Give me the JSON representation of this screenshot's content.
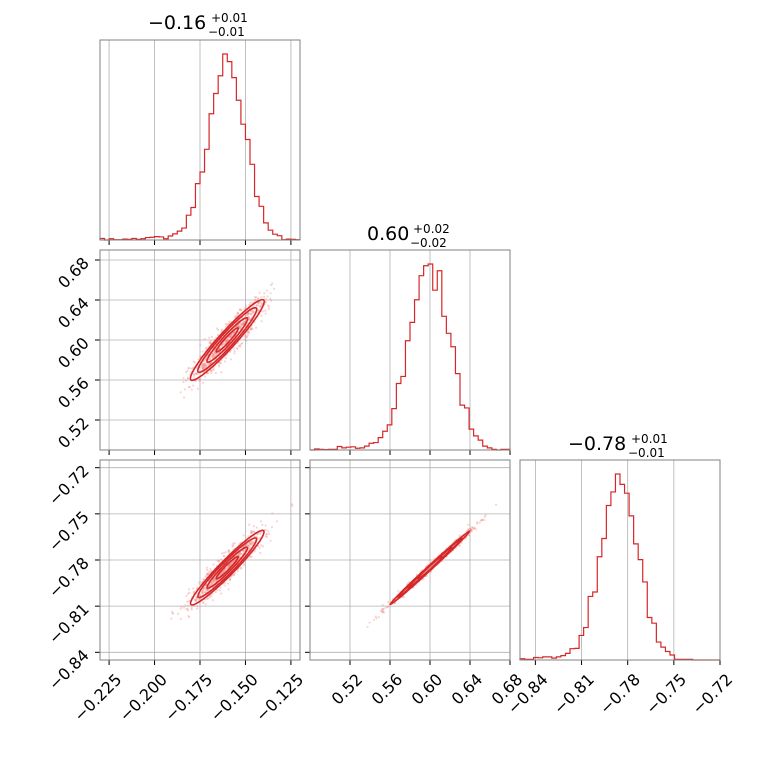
{
  "chart_data": [
    {
      "type": "histogram",
      "panel": "diagonal-1",
      "title_value": "−0.16",
      "title_plus": "+0.01",
      "title_minus": "−0.01",
      "xlim": [
        -0.23,
        -0.12
      ],
      "x_ticks": [
        -0.225,
        -0.2,
        -0.175,
        -0.15,
        -0.125
      ],
      "x_tick_labels": [
        "−0.225",
        "−0.200",
        "−0.175",
        "−0.150",
        "−0.125"
      ],
      "color": "#d62728",
      "median": -0.16,
      "sigma": 0.01
    },
    {
      "type": "histogram",
      "panel": "diagonal-2",
      "title_value": "0.60",
      "title_plus": "+0.02",
      "title_minus": "−0.02",
      "xlim": [
        0.48,
        0.68
      ],
      "x_ticks": [
        0.52,
        0.56,
        0.6,
        0.64,
        0.68
      ],
      "x_tick_labels": [
        "0.52",
        "0.56",
        "0.60",
        "0.64",
        "0.68"
      ],
      "color": "#d62728",
      "median": 0.6,
      "sigma": 0.02
    },
    {
      "type": "histogram",
      "panel": "diagonal-3",
      "title_value": "−0.78",
      "title_plus": "+0.01",
      "title_minus": "−0.01",
      "xlim": [
        -0.85,
        -0.72
      ],
      "x_ticks": [
        -0.84,
        -0.81,
        -0.78,
        -0.75,
        -0.72
      ],
      "x_tick_labels": [
        "−0.84",
        "−0.81",
        "−0.78",
        "−0.75",
        "−0.72"
      ],
      "color": "#d62728",
      "median": -0.785,
      "sigma": 0.012
    },
    {
      "type": "scatter",
      "panel": "2d-param1-param2",
      "xlim": [
        -0.23,
        -0.12
      ],
      "ylim": [
        0.49,
        0.69
      ],
      "x_ticks": [
        -0.225,
        -0.2,
        -0.175,
        -0.15,
        -0.125
      ],
      "y_ticks": [
        0.52,
        0.56,
        0.6,
        0.64,
        0.68
      ],
      "y_tick_labels": [
        "0.52",
        "0.56",
        "0.60",
        "0.64",
        "0.68"
      ],
      "color": "#d62728",
      "correlation": 0.92
    },
    {
      "type": "scatter",
      "panel": "2d-param1-param3",
      "xlim": [
        -0.23,
        -0.12
      ],
      "ylim": [
        -0.845,
        -0.715
      ],
      "x_ticks": [
        -0.225,
        -0.2,
        -0.175,
        -0.15,
        -0.125
      ],
      "y_ticks": [
        -0.84,
        -0.81,
        -0.78,
        -0.75,
        -0.72
      ],
      "y_tick_labels": [
        "−0.84",
        "−0.81",
        "−0.78",
        "−0.75",
        "−0.72"
      ],
      "color": "#d62728",
      "correlation": 0.93
    },
    {
      "type": "scatter",
      "panel": "2d-param2-param3",
      "xlim": [
        0.48,
        0.68
      ],
      "ylim": [
        -0.845,
        -0.715
      ],
      "x_ticks": [
        0.52,
        0.56,
        0.6,
        0.64,
        0.68
      ],
      "y_ticks": [
        -0.84,
        -0.81,
        -0.78,
        -0.75,
        -0.72
      ],
      "color": "#d62728",
      "correlation": 0.995
    }
  ]
}
